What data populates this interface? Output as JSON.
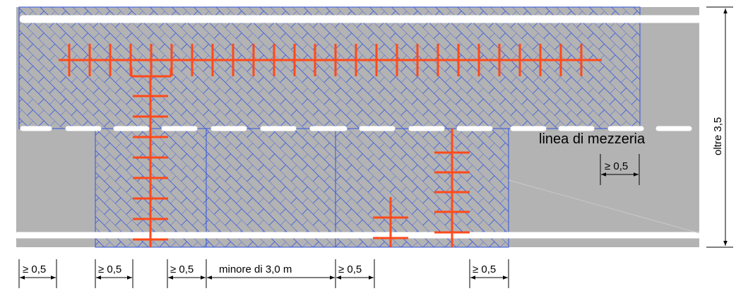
{
  "labels": {
    "centerline": "linea di mezzeria",
    "width_right": "oltre 3,5",
    "dim_centerline": "≥ 0,5",
    "dim_gap": "minore di 3,0 m"
  },
  "dimensions": [
    {
      "label": "≥ 0,5"
    },
    {
      "label": "≥ 0,5"
    },
    {
      "label": "≥ 0,5"
    },
    {
      "label": "minore di 3,0 m"
    },
    {
      "label": "≥ 0,5"
    },
    {
      "label": "≥ 0,5"
    }
  ],
  "colors": {
    "road": "#b3b3b3",
    "hatch": "#3355dd",
    "marking": "#ffffff",
    "excavation": "#ff4a1a",
    "dimension": "#000000"
  }
}
